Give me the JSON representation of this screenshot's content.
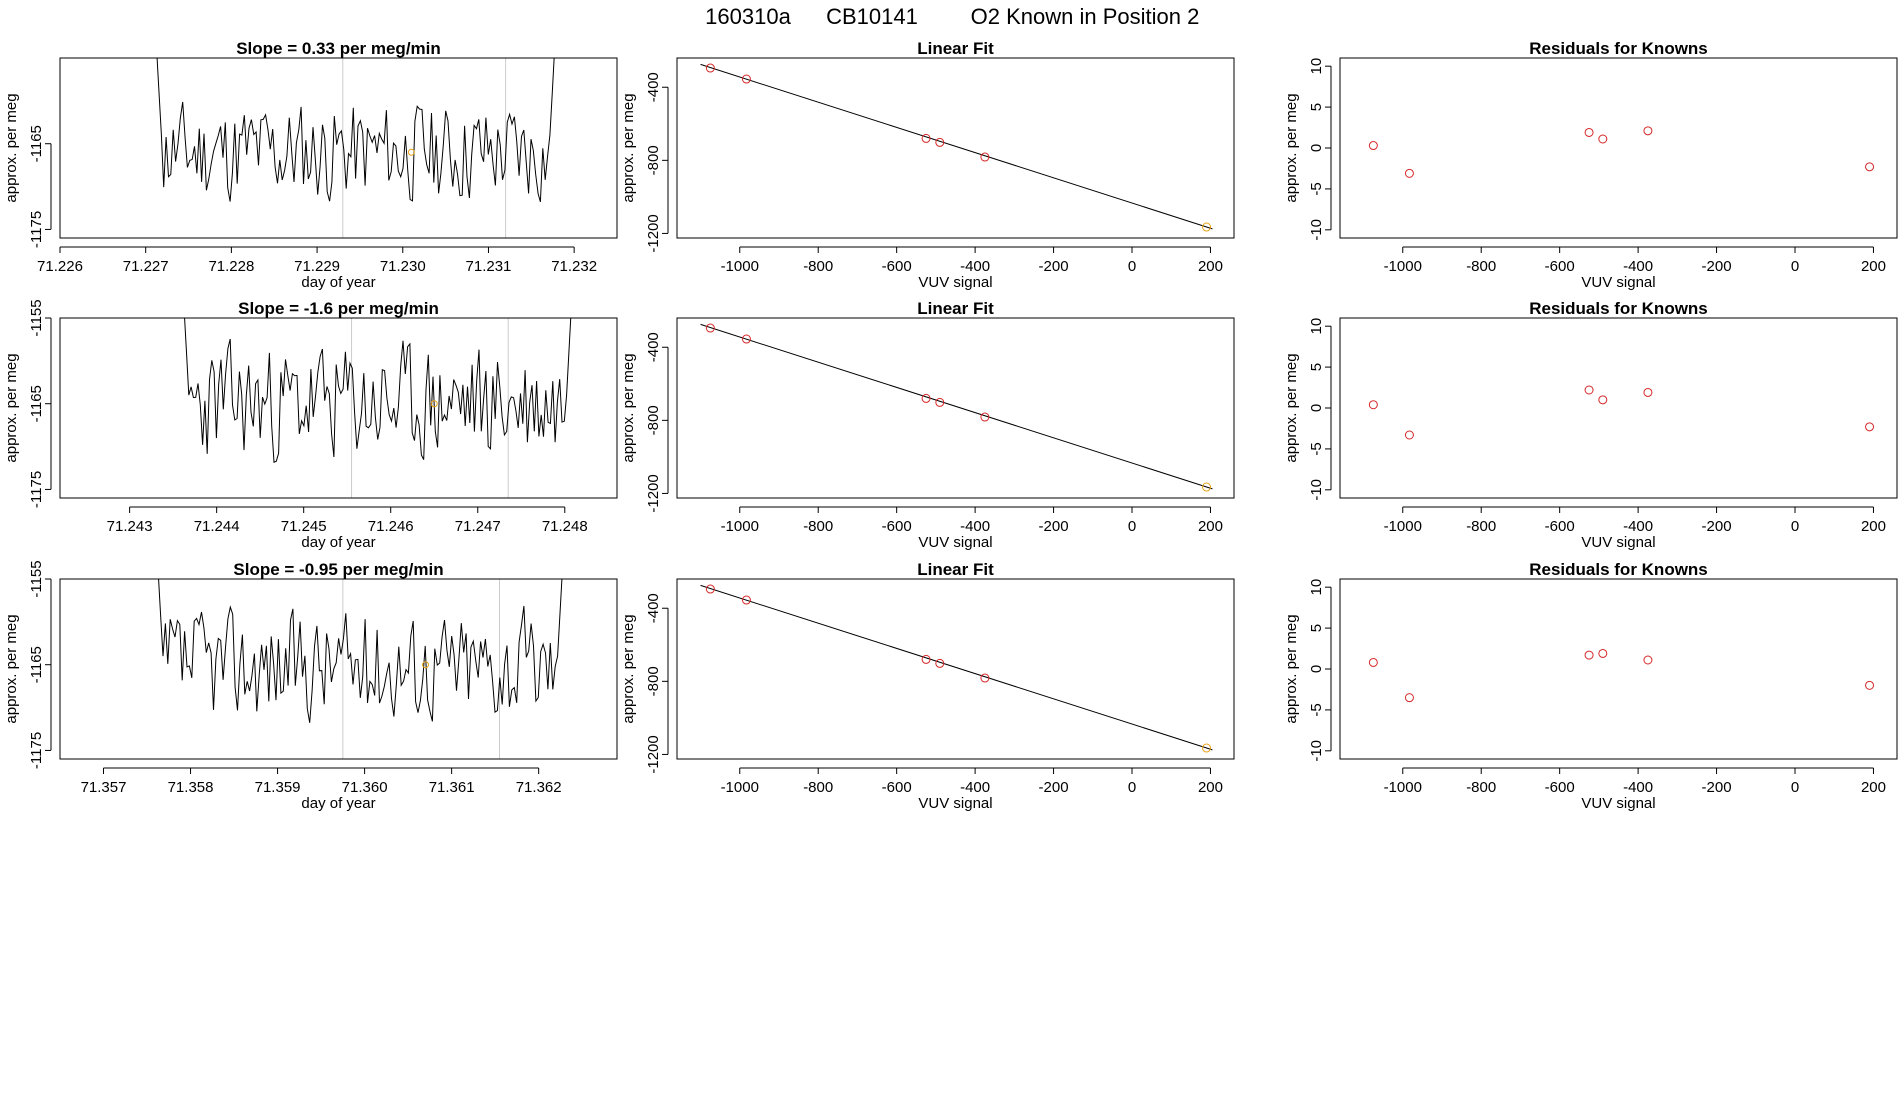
{
  "header": {
    "sample_id": "160310a",
    "cylinder_id": "CB10141",
    "known_label": "O2 Known in Position  2"
  },
  "colors": {
    "trace": "#000000",
    "known_point": "#e8a317",
    "residual_point": "#d62728",
    "fit_line": "#000000",
    "marker_line": "#cccccc"
  },
  "chart_data": [
    {
      "type": "line",
      "row": 1,
      "panel": "time-series",
      "title": "Slope =  0.33  per meg/min",
      "xlabel": "day of year",
      "ylabel": "approx. per meg",
      "xlim": [
        71.226,
        71.2325
      ],
      "ylim": [
        -1176,
        -1155
      ],
      "xticks": [
        71.226,
        71.227,
        71.228,
        71.229,
        71.23,
        71.231,
        71.232
      ],
      "xtick_labels": [
        "71.226",
        "71.227",
        "71.228",
        "71.229",
        "71.230",
        "71.231",
        "71.232"
      ],
      "yticks": [
        -1175,
        -1165
      ],
      "ytick_labels": [
        "-1175",
        "-1165"
      ],
      "series_start": 71.2271,
      "series_end": 71.2318,
      "baseline": -1166,
      "noise_amplitude": 3.6,
      "seed": 11,
      "markers_x": [
        71.2293,
        71.2312
      ],
      "known_point": {
        "x": 71.2301,
        "y": -1166
      }
    },
    {
      "type": "scatter",
      "row": 1,
      "panel": "linear-fit",
      "title": "Linear Fit",
      "xlabel": "VUV signal",
      "ylabel": "approx. per meg",
      "xlim": [
        -1160,
        260
      ],
      "ylim": [
        -1225,
        -240
      ],
      "xticks": [
        -1000,
        -800,
        -600,
        -400,
        -200,
        0,
        200
      ],
      "xtick_labels": [
        "-1000",
        "-800",
        "-600",
        "-400",
        "-200",
        "0",
        "200"
      ],
      "yticks": [
        -1200,
        -800,
        -400
      ],
      "ytick_labels": [
        "-1200",
        "-800",
        "-400"
      ],
      "x": [
        -1075,
        -983,
        -525,
        -490,
        -375,
        190
      ],
      "y": [
        -295,
        -355,
        -680,
        -702,
        -782,
        -1165
      ],
      "fit": {
        "x": [
          -1100,
          205
        ],
        "y": [
          -275,
          -1175
        ]
      },
      "known_index": 5
    },
    {
      "type": "scatter",
      "row": 1,
      "panel": "residuals",
      "title": "Residuals for Knowns",
      "xlabel": "VUV signal",
      "ylabel": "approx. per meg",
      "xlim": [
        -1160,
        260
      ],
      "ylim": [
        -11,
        11
      ],
      "xticks": [
        -1000,
        -800,
        -600,
        -400,
        -200,
        0,
        200
      ],
      "xtick_labels": [
        "-1000",
        "-800",
        "-600",
        "-400",
        "-200",
        "0",
        "200"
      ],
      "yticks": [
        -10,
        -5,
        0,
        5,
        10
      ],
      "ytick_labels": [
        "-10",
        "-5",
        "0",
        "5",
        "10"
      ],
      "x": [
        -1075,
        -983,
        -525,
        -490,
        -375,
        190
      ],
      "y": [
        0.3,
        -3.1,
        1.9,
        1.1,
        2.1,
        -2.3
      ]
    },
    {
      "type": "line",
      "row": 2,
      "panel": "time-series",
      "title": "Slope =  -1.6  per meg/min",
      "xlabel": "day of year",
      "ylabel": "approx. per meg",
      "xlim": [
        71.2422,
        71.2486
      ],
      "ylim": [
        -1176,
        -1155
      ],
      "xticks": [
        71.243,
        71.244,
        71.245,
        71.246,
        71.247,
        71.248
      ],
      "xtick_labels": [
        "71.243",
        "71.244",
        "71.245",
        "71.246",
        "71.247",
        "71.248"
      ],
      "yticks": [
        -1175,
        -1165,
        -1155
      ],
      "ytick_labels": [
        "-1175",
        "-1165",
        "-1155"
      ],
      "series_start": 71.2436,
      "series_end": 71.2481,
      "baseline": -1165,
      "noise_amplitude": 4.2,
      "seed": 23,
      "markers_x": [
        71.24555,
        71.24735
      ],
      "known_point": {
        "x": 71.2465,
        "y": -1165
      }
    },
    {
      "type": "scatter",
      "row": 2,
      "panel": "linear-fit",
      "title": "Linear Fit",
      "xlabel": "VUV signal",
      "ylabel": "approx. per meg",
      "xlim": [
        -1160,
        260
      ],
      "ylim": [
        -1225,
        -240
      ],
      "xticks": [
        -1000,
        -800,
        -600,
        -400,
        -200,
        0,
        200
      ],
      "xtick_labels": [
        "-1000",
        "-800",
        "-600",
        "-400",
        "-200",
        "0",
        "200"
      ],
      "yticks": [
        -1200,
        -800,
        -400
      ],
      "ytick_labels": [
        "-1200",
        "-800",
        "-400"
      ],
      "x": [
        -1075,
        -983,
        -525,
        -490,
        -375,
        190
      ],
      "y": [
        -295,
        -355,
        -680,
        -702,
        -782,
        -1165
      ],
      "fit": {
        "x": [
          -1100,
          205
        ],
        "y": [
          -275,
          -1175
        ]
      },
      "known_index": 5
    },
    {
      "type": "scatter",
      "row": 2,
      "panel": "residuals",
      "title": "Residuals for Knowns",
      "xlabel": "VUV signal",
      "ylabel": "approx. per meg",
      "xlim": [
        -1160,
        260
      ],
      "ylim": [
        -11,
        11
      ],
      "xticks": [
        -1000,
        -800,
        -600,
        -400,
        -200,
        0,
        200
      ],
      "xtick_labels": [
        "-1000",
        "-800",
        "-600",
        "-400",
        "-200",
        "0",
        "200"
      ],
      "yticks": [
        -10,
        -5,
        0,
        5,
        10
      ],
      "ytick_labels": [
        "-10",
        "-5",
        "0",
        "5",
        "10"
      ],
      "x": [
        -1075,
        -983,
        -525,
        -490,
        -375,
        190
      ],
      "y": [
        0.4,
        -3.3,
        2.2,
        1.0,
        1.9,
        -2.3
      ]
    },
    {
      "type": "line",
      "row": 3,
      "panel": "time-series",
      "title": "Slope =  -0.95  per meg/min",
      "xlabel": "day of year",
      "ylabel": "approx. per meg",
      "xlim": [
        71.3565,
        71.3629
      ],
      "ylim": [
        -1176,
        -1155
      ],
      "xticks": [
        71.357,
        71.358,
        71.359,
        71.36,
        71.361,
        71.362
      ],
      "xtick_labels": [
        "71.357",
        "71.358",
        "71.359",
        "71.360",
        "71.361",
        "71.362"
      ],
      "yticks": [
        -1175,
        -1165,
        -1155
      ],
      "ytick_labels": [
        "-1175",
        "-1165",
        "-1155"
      ],
      "series_start": 71.3576,
      "series_end": 71.3623,
      "baseline": -1165,
      "noise_amplitude": 3.9,
      "seed": 37,
      "markers_x": [
        71.35975,
        71.36155
      ],
      "known_point": {
        "x": 71.3607,
        "y": -1165
      }
    },
    {
      "type": "scatter",
      "row": 3,
      "panel": "linear-fit",
      "title": "Linear Fit",
      "xlabel": "VUV signal",
      "ylabel": "approx. per meg",
      "xlim": [
        -1160,
        260
      ],
      "ylim": [
        -1225,
        -240
      ],
      "xticks": [
        -1000,
        -800,
        -600,
        -400,
        -200,
        0,
        200
      ],
      "xtick_labels": [
        "-1000",
        "-800",
        "-600",
        "-400",
        "-200",
        "0",
        "200"
      ],
      "yticks": [
        -1200,
        -800,
        -400
      ],
      "ytick_labels": [
        "-1200",
        "-800",
        "-400"
      ],
      "x": [
        -1075,
        -983,
        -525,
        -490,
        -375,
        190
      ],
      "y": [
        -295,
        -355,
        -680,
        -702,
        -782,
        -1165
      ],
      "fit": {
        "x": [
          -1100,
          205
        ],
        "y": [
          -275,
          -1175
        ]
      },
      "known_index": 5
    },
    {
      "type": "scatter",
      "row": 3,
      "panel": "residuals",
      "title": "Residuals for Knowns",
      "xlabel": "VUV signal",
      "ylabel": "approx. per meg",
      "xlim": [
        -1160,
        260
      ],
      "ylim": [
        -11,
        11
      ],
      "xticks": [
        -1000,
        -800,
        -600,
        -400,
        -200,
        0,
        200
      ],
      "xtick_labels": [
        "-1000",
        "-800",
        "-600",
        "-400",
        "-200",
        "0",
        "200"
      ],
      "yticks": [
        -10,
        -5,
        0,
        5,
        10
      ],
      "ytick_labels": [
        "-10",
        "-5",
        "0",
        "5",
        "10"
      ],
      "x": [
        -1075,
        -983,
        -525,
        -490,
        -375,
        190
      ],
      "y": [
        0.8,
        -3.5,
        1.7,
        1.9,
        1.1,
        -2.0
      ]
    }
  ]
}
